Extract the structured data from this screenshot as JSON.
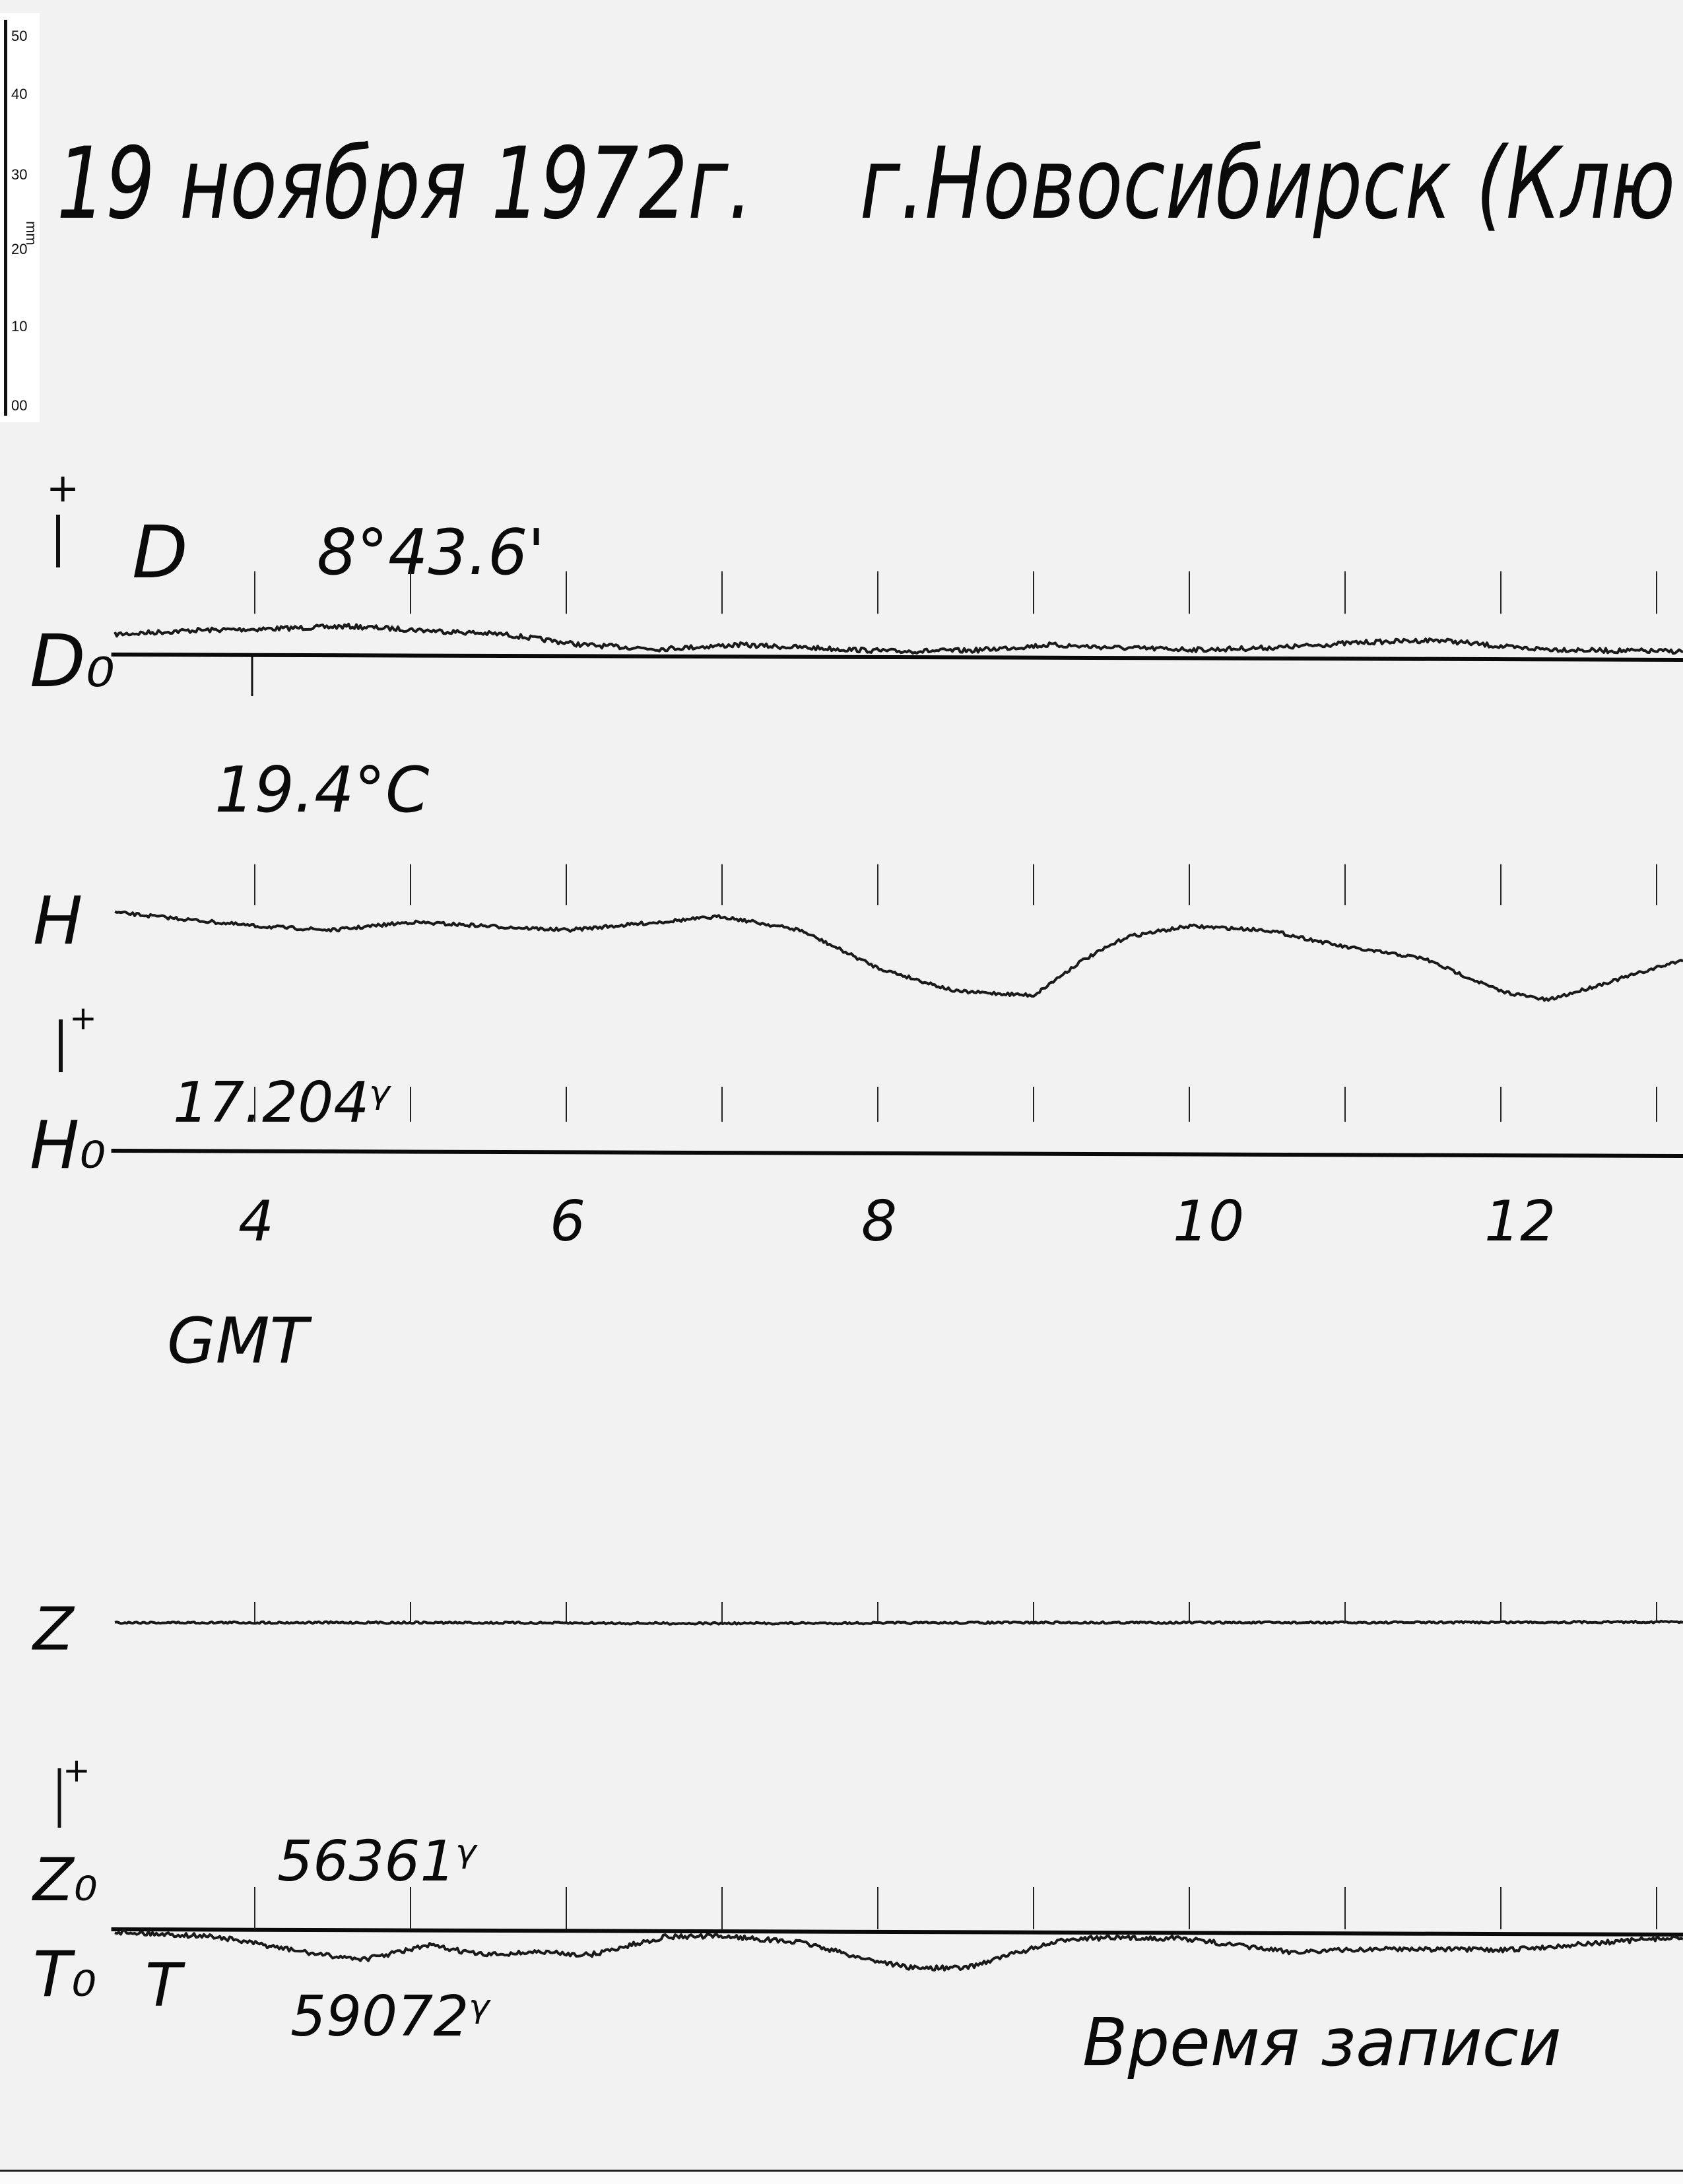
{
  "title": {
    "date": "19 ноября 1972г.",
    "place": "г.Новосибирск (Клю"
  },
  "ruler": {
    "unit": "mm",
    "ticks": [
      "50",
      "40",
      "30",
      "20",
      "10",
      "00"
    ]
  },
  "labels": {
    "D": "D",
    "D0": "D₀",
    "D0_value": "8°43.6'",
    "temperature": "19.4°C",
    "H": "H",
    "H0": "H₀",
    "H0_value": "17.204ᵞ",
    "Z": "Z",
    "Z0": "Z₀",
    "Z0_value": "56361ᵞ",
    "T": "T",
    "T0": "T₀",
    "T0_value": "59072ᵞ",
    "plus": "+",
    "time_axis": "GMT",
    "footer": "Время записи"
  },
  "colors": {
    "paper": "#f2f2f2",
    "ink": "#0a0a0a",
    "trace": "#1a1a1a"
  },
  "chart_data": {
    "type": "line",
    "title": "19 ноября 1972г. г.Новосибирск (Клю",
    "xlabel": "GMT",
    "x_tick_labels": [
      "4",
      "6",
      "8",
      "10",
      "12"
    ],
    "hour_marks": [
      4,
      5,
      6,
      7,
      8,
      9,
      10,
      11,
      12,
      13
    ],
    "xlim": [
      3.1,
      13.2
    ],
    "grid": false,
    "baselines": [
      {
        "name": "D₀",
        "value": "8°43.6'"
      },
      {
        "name": "H₀",
        "value": "17.204ᵞ"
      },
      {
        "name": "Z₀",
        "value": "56361ᵞ"
      },
      {
        "name": "T₀",
        "value": "59072ᵞ"
      }
    ],
    "series": [
      {
        "name": "D",
        "x": [
          3.1,
          3.6,
          4.1,
          4.6,
          5.1,
          5.6,
          6.1,
          6.6,
          7.1,
          7.6,
          8.1,
          8.6,
          9.1,
          9.6,
          10.1,
          10.6,
          11.1,
          11.6,
          12.1,
          12.6,
          13.1
        ],
        "y": [
          2.5,
          3.0,
          3.2,
          3.5,
          3.0,
          2.5,
          1.2,
          0.7,
          1.2,
          0.8,
          0.4,
          0.5,
          1.2,
          0.8,
          0.6,
          0.9,
          1.5,
          1.8,
          0.8,
          0.5,
          0.4
        ]
      },
      {
        "name": "H",
        "x": [
          3.1,
          4.0,
          4.5,
          5.0,
          6.0,
          7.0,
          7.5,
          8.0,
          8.5,
          9.0,
          9.3,
          9.6,
          10.0,
          10.5,
          11.0,
          11.5,
          12.0,
          12.3,
          12.7,
          13.2
        ],
        "y": [
          29.6,
          27.9,
          27.4,
          28.4,
          27.4,
          29.1,
          27.4,
          22.7,
          19.8,
          19.3,
          23.5,
          26.6,
          27.9,
          27.4,
          25.3,
          23.9,
          19.8,
          18.7,
          21.0,
          23.9
        ]
      },
      {
        "name": "Z",
        "x": [
          3.1,
          5.0,
          7.0,
          9.0,
          11.0,
          13.2
        ],
        "y": [
          38.1,
          38.1,
          38.0,
          38.1,
          38.1,
          38.2
        ]
      },
      {
        "name": "T",
        "x": [
          3.1,
          3.74,
          4.43,
          4.71,
          5.12,
          5.47,
          5.81,
          6.15,
          6.64,
          7.05,
          7.53,
          7.88,
          8.22,
          8.56,
          8.91,
          9.25,
          9.94,
          10.63,
          11.32,
          12.01,
          13.04
        ],
        "y": [
          -0.3,
          -0.9,
          -3.2,
          -3.7,
          -2.0,
          -3.2,
          -2.8,
          -3.2,
          -0.9,
          -0.9,
          -1.7,
          -3.5,
          -4.8,
          -4.8,
          -2.8,
          -1.1,
          -1.1,
          -2.8,
          -2.4,
          -2.6,
          -1.1
        ]
      }
    ]
  }
}
